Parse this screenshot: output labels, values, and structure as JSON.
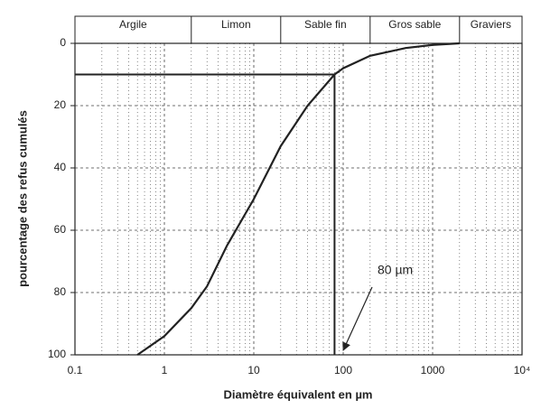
{
  "chart_data": {
    "type": "line",
    "x_label": "Diamètre équivalent en µm",
    "y_label": "pourcentage des refus cumulés",
    "x": [
      0.5,
      1,
      2,
      3,
      5,
      10,
      20,
      40,
      80,
      100,
      200,
      500,
      1000,
      2000
    ],
    "values": [
      100,
      94,
      85,
      78,
      65,
      50,
      33,
      20,
      10,
      8,
      4,
      1.5,
      0.5,
      0
    ],
    "color": "#222222",
    "log_x": true,
    "xlim": [
      0.1,
      10000
    ],
    "xticks": [
      0.1,
      1,
      10,
      100,
      1000,
      {
        "value": 10000,
        "label": "10⁴"
      }
    ],
    "ylim": [
      100,
      0
    ],
    "yticks": [
      0,
      20,
      40,
      60,
      80,
      100
    ],
    "grid": true,
    "zones": [
      {
        "label": "Argile",
        "from": 0.1,
        "to": 2
      },
      {
        "label": "Limon",
        "from": 2,
        "to": 20
      },
      {
        "label": "Sable fin",
        "from": 20,
        "to": 200
      },
      {
        "label": "Gros sable",
        "from": 200,
        "to": 2000
      },
      {
        "label": "Graviers",
        "from": 2000,
        "to": 10000
      }
    ],
    "reference_lines": {
      "x": 80,
      "y": 10
    },
    "annotation": "80 µm"
  }
}
